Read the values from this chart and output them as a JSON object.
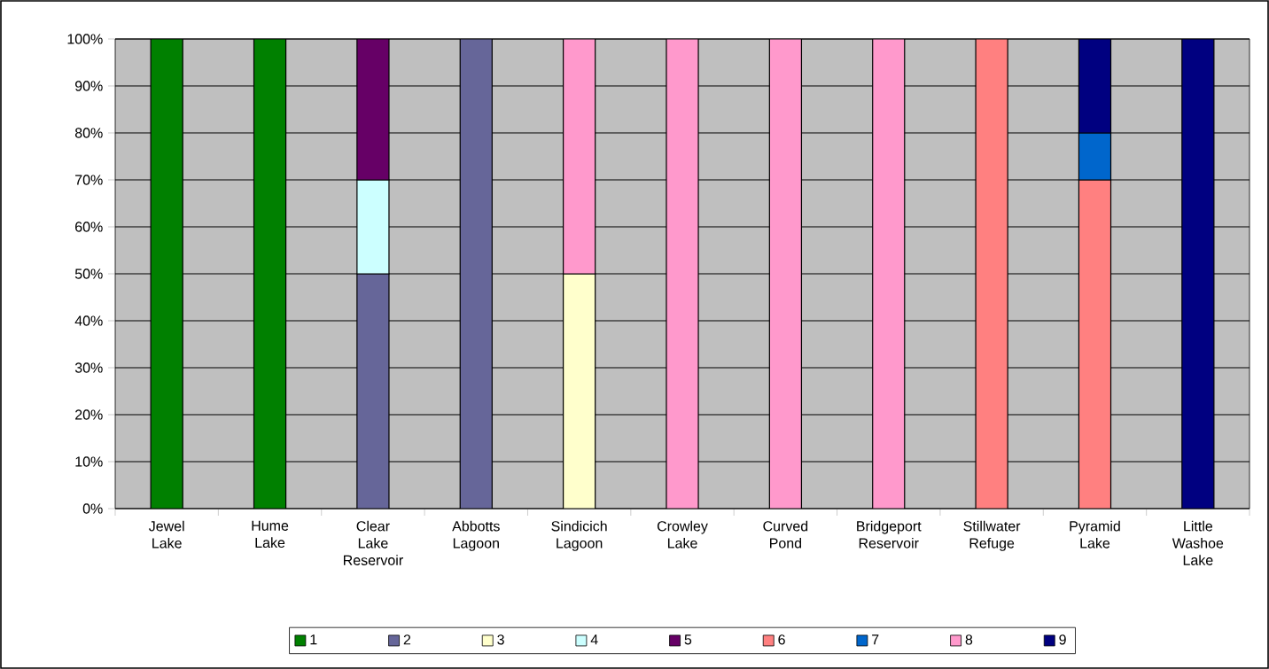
{
  "chart_data": {
    "type": "bar",
    "stacked": true,
    "categories": [
      "Jewel Lake",
      "Hume Lake",
      "Clear Lake Reservoir",
      "Abbotts Lagoon",
      "Sindicich Lagoon",
      "Crowley Lake",
      "Curved Pond",
      "Bridgeport Reservoir",
      "Stillwater Refuge",
      "Pyramid Lake",
      "Little Washoe Lake"
    ],
    "series": [
      {
        "name": "1",
        "color": "#008000",
        "values": [
          100,
          100,
          null,
          null,
          null,
          null,
          null,
          null,
          null,
          null,
          null
        ]
      },
      {
        "name": "2",
        "color": "#666699",
        "values": [
          null,
          null,
          50,
          100,
          null,
          null,
          null,
          null,
          null,
          null,
          null
        ]
      },
      {
        "name": "3",
        "color": "#ffffcc",
        "values": [
          null,
          null,
          null,
          null,
          50,
          null,
          null,
          null,
          null,
          null,
          null
        ]
      },
      {
        "name": "4",
        "color": "#ccffff",
        "values": [
          null,
          null,
          20,
          null,
          null,
          null,
          null,
          null,
          null,
          null,
          null
        ]
      },
      {
        "name": "5",
        "color": "#660066",
        "values": [
          null,
          null,
          30,
          null,
          null,
          null,
          null,
          null,
          null,
          null,
          null
        ]
      },
      {
        "name": "6",
        "color": "#ff8080",
        "values": [
          null,
          null,
          null,
          null,
          null,
          null,
          null,
          null,
          100,
          70,
          null
        ]
      },
      {
        "name": "7",
        "color": "#0066cc",
        "values": [
          null,
          null,
          null,
          null,
          null,
          null,
          null,
          null,
          null,
          10,
          null
        ]
      },
      {
        "name": "8",
        "color": "#ff99cc",
        "values": [
          null,
          null,
          null,
          null,
          50,
          100,
          100,
          100,
          null,
          null,
          null
        ]
      },
      {
        "name": "9",
        "color": "#000080",
        "values": [
          null,
          null,
          null,
          null,
          null,
          null,
          null,
          null,
          null,
          20,
          100
        ]
      }
    ],
    "ylim": [
      0,
      100
    ],
    "yticks": [
      {
        "value": 0,
        "label": "0%"
      },
      {
        "value": 10,
        "label": "10%"
      },
      {
        "value": 20,
        "label": "20%"
      },
      {
        "value": 30,
        "label": "30%"
      },
      {
        "value": 40,
        "label": "40%"
      },
      {
        "value": 50,
        "label": "50%"
      },
      {
        "value": 60,
        "label": "60%"
      },
      {
        "value": 70,
        "label": "70%"
      },
      {
        "value": 80,
        "label": "80%"
      },
      {
        "value": 90,
        "label": "90%"
      },
      {
        "value": 100,
        "label": "100%"
      }
    ],
    "grid": "y",
    "legend": "bottom"
  }
}
